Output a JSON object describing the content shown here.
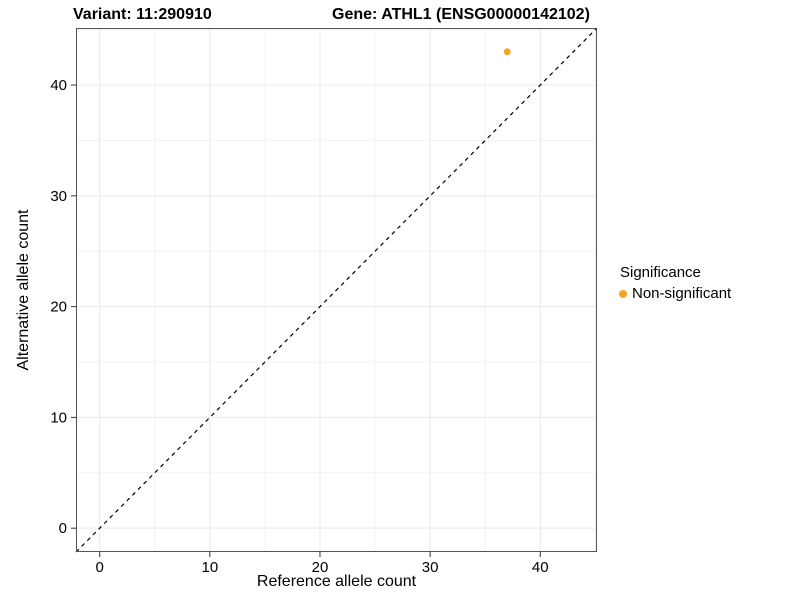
{
  "titles": {
    "variant": "Variant: 11:290910",
    "gene": "Gene: ATHL1 (ENSG00000142102)"
  },
  "chart_data": {
    "type": "scatter",
    "title_left": "Variant: 11:290910",
    "title_right": "Gene: ATHL1 (ENSG00000142102)",
    "xlabel": "Reference allele count",
    "ylabel": "Alternative allele count",
    "xlim": [
      -2.15,
      45.15
    ],
    "ylim": [
      -2.15,
      45.15
    ],
    "x_ticks": [
      0,
      10,
      20,
      30,
      40
    ],
    "y_ticks": [
      0,
      10,
      20,
      30,
      40
    ],
    "minor_gridlines": [
      5,
      15,
      25,
      35,
      45
    ],
    "grid": true,
    "points": [
      {
        "x": 37,
        "y": 43,
        "series": "Non-significant"
      }
    ],
    "reference_line": {
      "type": "identity",
      "slope": 1,
      "intercept": 0,
      "style": "dashed",
      "color": "#000000"
    },
    "legend": {
      "title": "Significance",
      "position": "right",
      "items": [
        {
          "label": "Non-significant",
          "color": "#F9A323"
        }
      ]
    }
  },
  "colors": {
    "point": "#F9A323",
    "panel_border": "#555555",
    "grid_major": "#e9e9e9",
    "grid_minor": "#f3f3f3",
    "tick_mark": "#333333",
    "tick_label": "#000000",
    "background": "#ffffff"
  }
}
